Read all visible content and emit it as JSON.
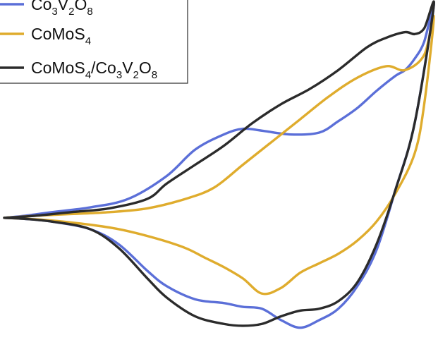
{
  "chart_data": {
    "type": "line",
    "title": "",
    "xlabel": "",
    "ylabel": "",
    "grid": false,
    "legend_position": "top-left",
    "series": [
      {
        "key": "co3v2o8",
        "name": "Co3V2O8",
        "color": "#5b6fd8",
        "legend_label": {
          "parts": [
            "Co",
            "3",
            "V",
            "2",
            "O",
            "8"
          ]
        },
        "x": [
          -0.3,
          -0.26,
          -0.2,
          -0.12,
          -0.04,
          0.04,
          0.1,
          0.16,
          0.2,
          0.24,
          0.3,
          0.36,
          0.4,
          0.44,
          0.48,
          0.52,
          0.54,
          0.56,
          0.58,
          0.6,
          0.56,
          0.52,
          0.48,
          0.44,
          0.4,
          0.36,
          0.32,
          0.28,
          0.24,
          0.2,
          0.16,
          0.1,
          0.04,
          0.0,
          -0.06,
          -0.12,
          -0.2,
          -0.26,
          -0.3
        ],
        "y": [
          0.0,
          0.1,
          0.3,
          0.55,
          1.0,
          2.2,
          3.6,
          4.4,
          4.7,
          4.6,
          4.4,
          4.5,
          5.1,
          5.8,
          6.7,
          7.5,
          7.8,
          8.4,
          9.3,
          11.2,
          5.0,
          1.5,
          -1.7,
          -3.6,
          -4.8,
          -5.4,
          -5.8,
          -5.4,
          -4.8,
          -4.7,
          -4.5,
          -4.3,
          -3.6,
          -2.8,
          -1.4,
          -0.6,
          -0.2,
          -0.05,
          0.0
        ]
      },
      {
        "key": "comos4",
        "name": "CoMoS4",
        "color": "#dfac2d",
        "legend_label": {
          "parts": [
            "CoMoS",
            "4"
          ]
        },
        "x": [
          -0.3,
          -0.24,
          -0.16,
          -0.08,
          0.0,
          0.08,
          0.14,
          0.2,
          0.26,
          0.32,
          0.38,
          0.44,
          0.5,
          0.54,
          0.58,
          0.6,
          0.58,
          0.56,
          0.52,
          0.48,
          0.44,
          0.4,
          0.36,
          0.32,
          0.28,
          0.24,
          0.2,
          0.16,
          0.12,
          0.08,
          0.02,
          -0.06,
          -0.14,
          -0.22,
          -0.3
        ],
        "y": [
          0.0,
          0.1,
          0.2,
          0.3,
          0.5,
          1.0,
          1.6,
          2.8,
          4.0,
          5.2,
          6.4,
          7.4,
          8.0,
          7.8,
          8.6,
          10.6,
          6.0,
          3.4,
          1.3,
          -0.2,
          -1.2,
          -1.9,
          -2.4,
          -2.9,
          -3.7,
          -4.0,
          -3.2,
          -2.6,
          -2.1,
          -1.6,
          -1.1,
          -0.6,
          -0.3,
          -0.1,
          0.0
        ]
      },
      {
        "key": "composite",
        "name": "CoMoS4/Co3V2O8",
        "color": "#2b2b2b",
        "legend_label": {
          "parts": [
            "CoMoS",
            "4",
            "/Co",
            "3",
            "V",
            "2",
            "O",
            "8"
          ]
        },
        "x": [
          -0.3,
          -0.24,
          -0.16,
          -0.08,
          0.0,
          0.04,
          0.1,
          0.16,
          0.22,
          0.28,
          0.34,
          0.4,
          0.46,
          0.5,
          0.54,
          0.56,
          0.58,
          0.6,
          0.56,
          0.52,
          0.48,
          0.44,
          0.4,
          0.36,
          0.32,
          0.28,
          0.24,
          0.2,
          0.16,
          0.1,
          0.04,
          0.0,
          -0.06,
          -0.12,
          -0.2,
          -0.26,
          -0.3
        ],
        "y": [
          0.0,
          0.1,
          0.3,
          0.5,
          1.0,
          1.8,
          2.8,
          3.8,
          5.0,
          6.0,
          6.8,
          7.8,
          9.0,
          9.5,
          9.8,
          9.7,
          10.0,
          11.2,
          5.0,
          1.5,
          -1.4,
          -3.4,
          -4.4,
          -4.8,
          -4.9,
          -5.2,
          -5.6,
          -5.7,
          -5.6,
          -5.2,
          -4.2,
          -3.2,
          -1.6,
          -0.6,
          -0.2,
          -0.05,
          0.0
        ]
      }
    ]
  }
}
